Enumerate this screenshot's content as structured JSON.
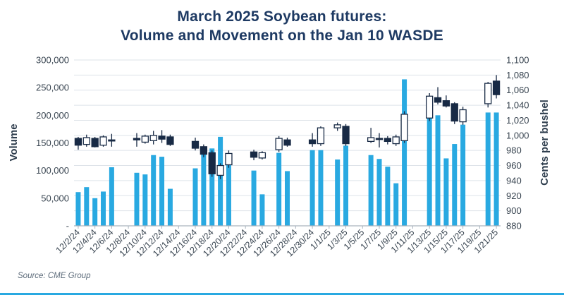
{
  "title": {
    "line1": "March 2025 Soybean futures:",
    "line2": "Volume and Movement on the Jan 10 WASDE"
  },
  "source": "Source: CME Group",
  "chart_data": {
    "type": "candlestick_volume",
    "title": "March 2025 Soybean futures: Volume and Movement on the Jan 10 WASDE",
    "grid": "horizontal",
    "left_axis": {
      "label": "Volume",
      "min": 0,
      "max": 300000,
      "tick_labels": [
        "300,000",
        "250,000",
        "200,000",
        "150,000",
        "100,000",
        "50,000",
        "-"
      ],
      "tick_values": [
        300000,
        250000,
        200000,
        150000,
        100000,
        50000,
        0
      ]
    },
    "right_axis": {
      "label": "Cents per bushel",
      "min": 880,
      "max": 1100,
      "step": 20,
      "tick_labels": [
        "1,100",
        "1,080",
        "1,060",
        "1,040",
        "1,020",
        "1,000",
        "980",
        "960",
        "940",
        "920",
        "900",
        "880"
      ]
    },
    "x_axis": {
      "start_date": "12/2/24",
      "end_date": "1/21/25",
      "num_slots": 51,
      "labels": [
        "12/2/24",
        "12/4/24",
        "12/6/24",
        "12/8/24",
        "12/10/24",
        "12/12/24",
        "12/14/24",
        "12/16/24",
        "12/18/24",
        "12/20/24",
        "12/22/24",
        "12/24/24",
        "12/26/24",
        "12/28/24",
        "12/30/24",
        "1/1/25",
        "1/3/25",
        "1/5/25",
        "1/7/25",
        "1/9/25",
        "1/11/25",
        "1/13/25",
        "1/15/25",
        "1/17/25",
        "1/19/25",
        "1/21/25"
      ],
      "label_slot_step": 2
    },
    "colors": {
      "volume_bar": "#29a9e1",
      "candle_up_fill": "#ffffff",
      "candle_down_fill": "#182a45",
      "candle_stroke": "#182a45",
      "gridline": "#dee3e9",
      "axis_line": "#aab4be",
      "title_navy": "#1e3a63",
      "accent_rule": "#29a9e1"
    },
    "days": [
      {
        "date": "12/2/24",
        "i": 0,
        "volume": 61000,
        "open": 996,
        "high": 998,
        "low": 981,
        "close": 987
      },
      {
        "date": "12/3/24",
        "i": 1,
        "volume": 70000,
        "open": 988,
        "high": 1001,
        "low": 985,
        "close": 997
      },
      {
        "date": "12/4/24",
        "i": 2,
        "volume": 50000,
        "open": 996,
        "high": 998,
        "low": 984,
        "close": 985
      },
      {
        "date": "12/5/24",
        "i": 3,
        "volume": 62000,
        "open": 987,
        "high": 1000,
        "low": 985,
        "close": 998
      },
      {
        "date": "12/6/24",
        "i": 4,
        "volume": 106000,
        "open": 994,
        "high": 1002,
        "low": 985,
        "close": 993
      },
      {
        "date": "12/9/24",
        "i": 7,
        "volume": 96000,
        "open": 996,
        "high": 1003,
        "low": 985,
        "close": 994
      },
      {
        "date": "12/10/24",
        "i": 8,
        "volume": 93000,
        "open": 991,
        "high": 1001,
        "low": 989,
        "close": 999
      },
      {
        "date": "12/11/24",
        "i": 9,
        "volume": 128000,
        "open": 993,
        "high": 1006,
        "low": 988,
        "close": 1000
      },
      {
        "date": "12/12/24",
        "i": 10,
        "volume": 125000,
        "open": 999,
        "high": 1007,
        "low": 990,
        "close": 995
      },
      {
        "date": "12/13/24",
        "i": 11,
        "volume": 67000,
        "open": 998,
        "high": 1001,
        "low": 986,
        "close": 988
      },
      {
        "date": "12/16/24",
        "i": 14,
        "volume": 104000,
        "open": 992,
        "high": 997,
        "low": 980,
        "close": 983
      },
      {
        "date": "12/17/24",
        "i": 15,
        "volume": 141000,
        "open": 985,
        "high": 988,
        "low": 971,
        "close": 975
      },
      {
        "date": "12/18/24",
        "i": 16,
        "volume": 140000,
        "open": 977,
        "high": 980,
        "low": 945,
        "close": 949
      },
      {
        "date": "12/19/24",
        "i": 17,
        "volume": 161000,
        "open": 947,
        "high": 963,
        "low": 942,
        "close": 960
      },
      {
        "date": "12/20/24",
        "i": 18,
        "volume": 120000,
        "open": 961,
        "high": 980,
        "low": 957,
        "close": 976
      },
      {
        "date": "12/23/24",
        "i": 21,
        "volume": 100000,
        "open": 978,
        "high": 981,
        "low": 967,
        "close": 971
      },
      {
        "date": "12/24/24",
        "i": 22,
        "volume": 57000,
        "open": 970,
        "high": 979,
        "low": 968,
        "close": 977
      },
      {
        "date": "12/26/24",
        "i": 24,
        "volume": 132000,
        "open": 981,
        "high": 999,
        "low": 978,
        "close": 996
      },
      {
        "date": "12/27/24",
        "i": 25,
        "volume": 99000,
        "open": 994,
        "high": 997,
        "low": 985,
        "close": 987
      },
      {
        "date": "12/30/24",
        "i": 28,
        "volume": 137000,
        "open": 994,
        "high": 1003,
        "low": 985,
        "close": 989
      },
      {
        "date": "12/31/24",
        "i": 29,
        "volume": 137000,
        "open": 989,
        "high": 1012,
        "low": 986,
        "close": 1010
      },
      {
        "date": "1/2/25",
        "i": 31,
        "volume": 120000,
        "open": 1010,
        "high": 1017,
        "low": 1006,
        "close": 1014
      },
      {
        "date": "1/3/25",
        "i": 32,
        "volume": 145000,
        "open": 1012,
        "high": 1015,
        "low": 986,
        "close": 989
      },
      {
        "date": "1/6/25",
        "i": 35,
        "volume": 128000,
        "open": 992,
        "high": 1010,
        "low": 990,
        "close": 997
      },
      {
        "date": "1/7/25",
        "i": 36,
        "volume": 121000,
        "open": 996,
        "high": 1003,
        "low": 984,
        "close": 995
      },
      {
        "date": "1/8/25",
        "i": 37,
        "volume": 107000,
        "open": 996,
        "high": 999,
        "low": 988,
        "close": 992
      },
      {
        "date": "1/9/25",
        "i": 38,
        "volume": 77000,
        "open": 989,
        "high": 1001,
        "low": 986,
        "close": 998
      },
      {
        "date": "1/10/25",
        "i": 39,
        "volume": 265000,
        "open": 993,
        "high": 1032,
        "low": 990,
        "close": 1028
      },
      {
        "date": "1/13/25",
        "i": 42,
        "volume": 202000,
        "open": 1023,
        "high": 1056,
        "low": 1019,
        "close": 1052
      },
      {
        "date": "1/14/25",
        "i": 43,
        "volume": 200000,
        "open": 1050,
        "high": 1064,
        "low": 1041,
        "close": 1044
      },
      {
        "date": "1/15/25",
        "i": 44,
        "volume": 122000,
        "open": 1046,
        "high": 1053,
        "low": 1037,
        "close": 1039
      },
      {
        "date": "1/16/25",
        "i": 45,
        "volume": 148000,
        "open": 1042,
        "high": 1044,
        "low": 1015,
        "close": 1019
      },
      {
        "date": "1/17/25",
        "i": 46,
        "volume": 183000,
        "open": 1018,
        "high": 1038,
        "low": 1014,
        "close": 1034
      },
      {
        "date": "1/20/25",
        "i": 49,
        "volume": 205000,
        "open": 1042,
        "high": 1071,
        "low": 1037,
        "close": 1069
      },
      {
        "date": "1/21/25",
        "i": 50,
        "volume": 205000,
        "open": 1072,
        "high": 1080,
        "low": 1049,
        "close": 1054
      }
    ]
  }
}
